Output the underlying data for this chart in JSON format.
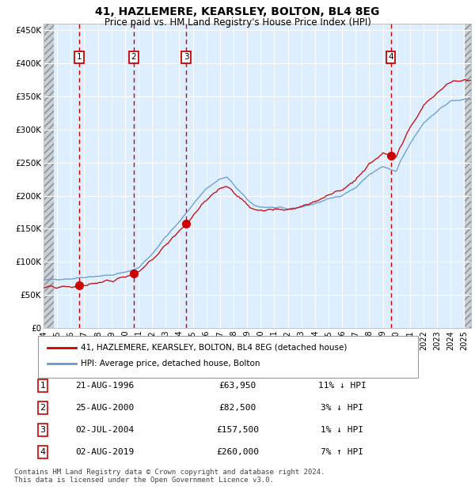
{
  "title": "41, HAZLEMERE, KEARSLEY, BOLTON, BL4 8EG",
  "subtitle": "Price paid vs. HM Land Registry's House Price Index (HPI)",
  "xlim": [
    1994.0,
    2025.5
  ],
  "ylim": [
    0,
    460000
  ],
  "yticks": [
    0,
    50000,
    100000,
    150000,
    200000,
    250000,
    300000,
    350000,
    400000,
    450000
  ],
  "ytick_labels": [
    "£0",
    "£50K",
    "£100K",
    "£150K",
    "£200K",
    "£250K",
    "£300K",
    "£350K",
    "£400K",
    "£450K"
  ],
  "xtick_years": [
    1994,
    1995,
    1996,
    1997,
    1998,
    1999,
    2000,
    2001,
    2002,
    2003,
    2004,
    2005,
    2006,
    2007,
    2008,
    2009,
    2010,
    2011,
    2012,
    2013,
    2014,
    2015,
    2016,
    2017,
    2018,
    2019,
    2020,
    2021,
    2022,
    2023,
    2024,
    2025
  ],
  "sale_color": "#cc0000",
  "hpi_color": "#6699cc",
  "plot_bg": "#ddeeff",
  "grid_color": "#ffffff",
  "fig_bg": "#ffffff",
  "hatch_bg": "#c8d0d8",
  "sale_points": [
    {
      "num": 1,
      "year": 1996.64,
      "price": 63950
    },
    {
      "num": 2,
      "year": 2000.65,
      "price": 82500
    },
    {
      "num": 3,
      "year": 2004.5,
      "price": 157500
    },
    {
      "num": 4,
      "year": 2019.58,
      "price": 260000
    }
  ],
  "legend_line1": "41, HAZLEMERE, KEARSLEY, BOLTON, BL4 8EG (detached house)",
  "legend_line2": "HPI: Average price, detached house, Bolton",
  "table_data": [
    [
      "1",
      "21-AUG-1996",
      "£63,950",
      "11% ↓ HPI"
    ],
    [
      "2",
      "25-AUG-2000",
      "£82,500",
      "3% ↓ HPI"
    ],
    [
      "3",
      "02-JUL-2004",
      "£157,500",
      "1% ↓ HPI"
    ],
    [
      "4",
      "02-AUG-2019",
      "£260,000",
      "7% ↑ HPI"
    ]
  ],
  "footer": "Contains HM Land Registry data © Crown copyright and database right 2024.\nThis data is licensed under the Open Government Licence v3.0.",
  "hpi_anchors_y": [
    1994,
    1995,
    1996,
    1997,
    1998,
    1999,
    2000,
    2001,
    2002,
    2003,
    2004,
    2005,
    2006,
    2007,
    2007.5,
    2008,
    2009,
    2009.5,
    2010,
    2011,
    2012,
    2013,
    2014,
    2015,
    2016,
    2017,
    2018,
    2019,
    2019.5,
    2020,
    2020.3,
    2021,
    2022,
    2023,
    2024,
    2025
  ],
  "hpi_anchors_v": [
    72000,
    74000,
    74500,
    77000,
    78500,
    80000,
    84000,
    91000,
    112000,
    138000,
    160000,
    187000,
    211000,
    225000,
    228000,
    217000,
    194000,
    186000,
    183000,
    182000,
    180000,
    183000,
    188000,
    195000,
    201000,
    212000,
    232000,
    244000,
    240000,
    236000,
    252000,
    278000,
    310000,
    328000,
    343000,
    345000
  ]
}
